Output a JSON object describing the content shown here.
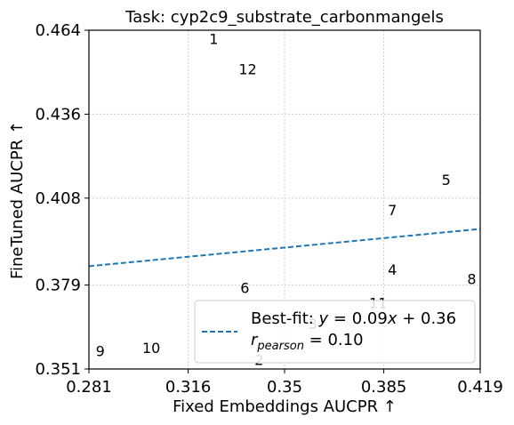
{
  "chart_data": {
    "type": "scatter",
    "title": "Task: cyp2c9_substrate_carbonmangels",
    "xlabel": "Fixed Embeddings AUCPR ↑",
    "ylabel": "FineTuned AUCPR ↑",
    "xlim": [
      0.281,
      0.419
    ],
    "ylim": [
      0.351,
      0.464
    ],
    "xticks": [
      0.281,
      0.316,
      0.35,
      0.385,
      0.419
    ],
    "xtick_labels": [
      "0.281",
      "0.316",
      "0.35",
      "0.385",
      "0.419"
    ],
    "yticks": [
      0.351,
      0.379,
      0.408,
      0.436,
      0.464
    ],
    "ytick_labels": [
      "0.351",
      "0.379",
      "0.408",
      "0.436",
      "0.464"
    ],
    "grid": true,
    "points": [
      {
        "label": "1",
        "x": 0.325,
        "y": 0.461
      },
      {
        "label": "2",
        "x": 0.341,
        "y": 0.354
      },
      {
        "label": "3",
        "x": 0.36,
        "y": 0.366
      },
      {
        "label": "4",
        "x": 0.388,
        "y": 0.384
      },
      {
        "label": "5",
        "x": 0.407,
        "y": 0.414
      },
      {
        "label": "6",
        "x": 0.336,
        "y": 0.378
      },
      {
        "label": "7",
        "x": 0.388,
        "y": 0.404
      },
      {
        "label": "8",
        "x": 0.416,
        "y": 0.381
      },
      {
        "label": "9",
        "x": 0.285,
        "y": 0.357
      },
      {
        "label": "10",
        "x": 0.303,
        "y": 0.358
      },
      {
        "label": "11",
        "x": 0.383,
        "y": 0.373
      },
      {
        "label": "12",
        "x": 0.337,
        "y": 0.451
      }
    ],
    "fit_line": {
      "slope": 0.09,
      "intercept": 0.36,
      "color": "#1f77b4",
      "style": "dashed"
    },
    "legend": {
      "placement": "bottom-right",
      "fit_text": "Best-fit: y = 0.09x + 0.36",
      "pearson_text": "r_pearson = 0.10"
    }
  }
}
